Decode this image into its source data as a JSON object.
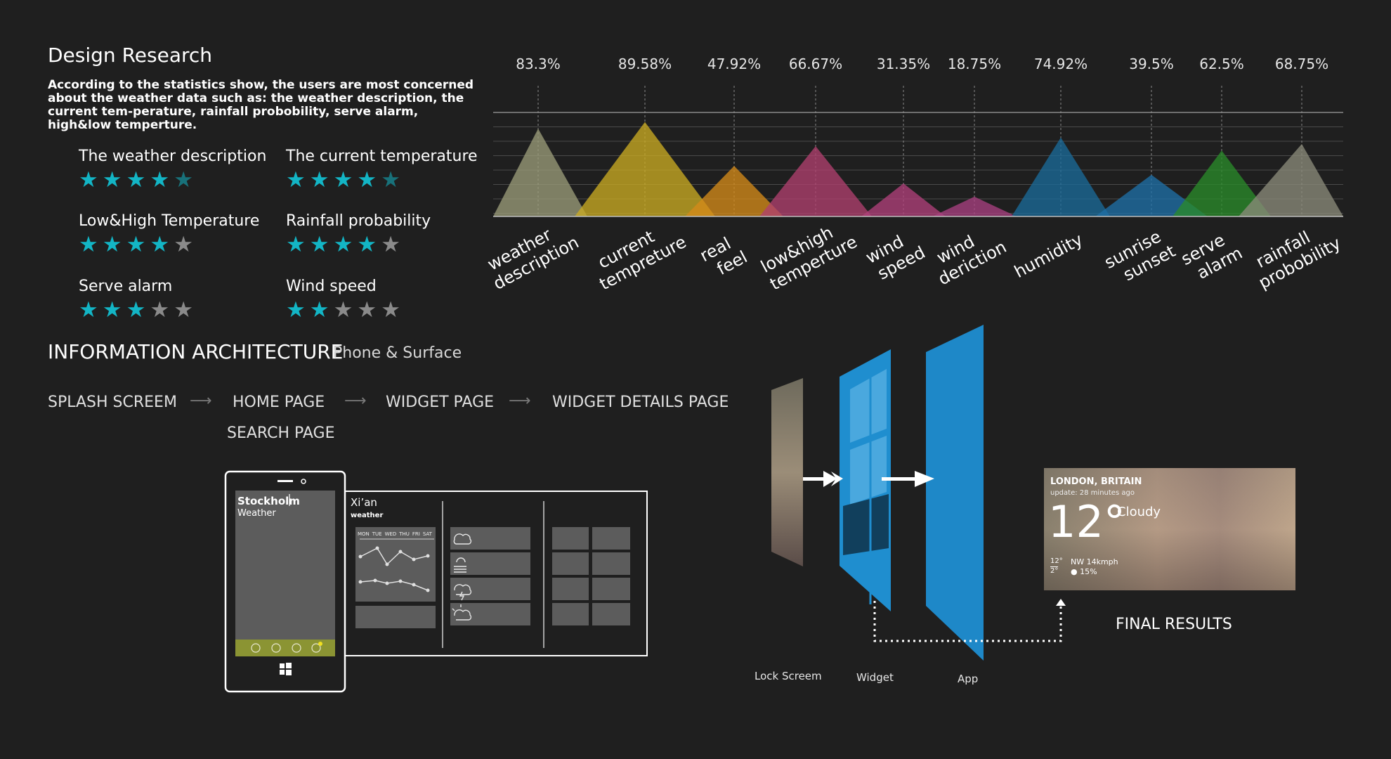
{
  "design_research": {
    "title": "Design Research",
    "description": "According to the statistics show, the users are most concerned about the weather data such as:  the weather description, the current tem-perature, rainfall probobility, serve alarm, high&low temperture.",
    "ratings": [
      {
        "label": "The weather description",
        "stars": 4.5
      },
      {
        "label": "The current temperature",
        "stars": 4.5
      },
      {
        "label": "Low&High Temperature",
        "stars": 4
      },
      {
        "label": "Rainfall probability",
        "stars": 4
      },
      {
        "label": "Serve alarm",
        "stars": 3
      },
      {
        "label": "Wind speed",
        "stars": 2
      }
    ]
  },
  "chart_data": {
    "type": "area",
    "categories": [
      "weather description",
      "current tempreture",
      "real feel",
      "low&high temperture",
      "wind speed",
      "wind deriction",
      "humidity",
      "sunrise sunset",
      "serve alarm",
      "rainfall probobility"
    ],
    "percent_labels": [
      "83.3%",
      "89.58%",
      "47.92%",
      "66.67%",
      "31.35%",
      "18.75%",
      "74.92%",
      "39.5%",
      "62.5%",
      "68.75%"
    ],
    "values": [
      83.3,
      89.58,
      47.92,
      66.67,
      31.35,
      18.75,
      74.92,
      39.5,
      62.5,
      68.75
    ],
    "colors": [
      "#9a9b78",
      "#c9aa22",
      "#d48a1a",
      "#b0406e",
      "#b0407a",
      "#a84080",
      "#1b6a98",
      "#1f6fa6",
      "#2a8a2a",
      "#8a8a7a"
    ],
    "grid": true,
    "ylim": [
      0,
      100
    ]
  },
  "information_architecture": {
    "title": "INFORMATION ARCHITECTURE",
    "subtitle": "Phone & Surface",
    "flow": [
      "SPLASH SCREEM",
      "HOME PAGE",
      "WIDGET PAGE",
      "WIDGET DETAILS PAGE"
    ],
    "flow_sub": "SEARCH PAGE",
    "arrow_glyph": "⟶"
  },
  "phone": {
    "city": "Stockholm",
    "sub": "Weather",
    "panel_city": "Xi’an",
    "panel_sub": "weather",
    "days": [
      "MON",
      "TUE",
      "WED",
      "THU",
      "FRI",
      "SAT"
    ]
  },
  "surface": {
    "labels": [
      "Lock Screem",
      "Widget",
      "App"
    ],
    "final_results": "FINAL RESULTS",
    "card": {
      "location": "LONDON, BRITAIN",
      "update": "update:  28 minutes ago",
      "temp": "12°",
      "condition": "Cloudy",
      "high": "12°",
      "low": "2°",
      "wind": "NW 14kmph",
      "rain": "15%"
    }
  }
}
